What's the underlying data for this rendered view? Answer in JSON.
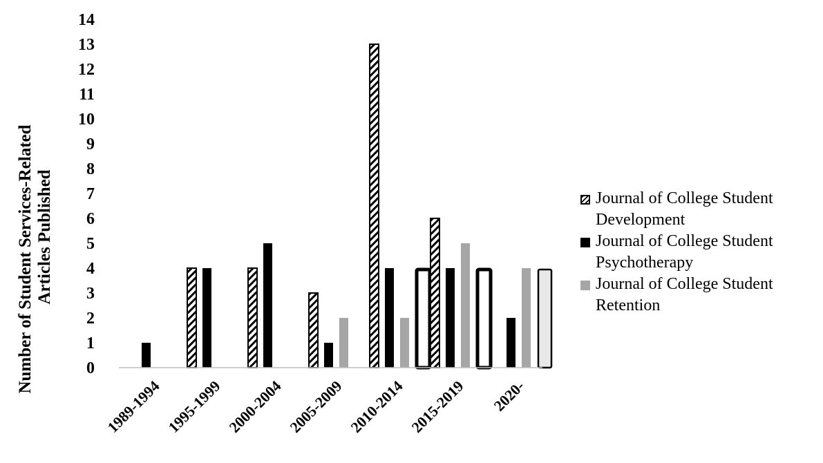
{
  "chart_data": {
    "type": "bar",
    "title": "",
    "xlabel": "",
    "ylabel": "Number of Student Services-Related Articles Published",
    "ylabel_lines": [
      "Number of  Student Services-Related",
      "Articles Published"
    ],
    "ylim": [
      0,
      14
    ],
    "yticks": [
      0,
      1,
      2,
      3,
      4,
      5,
      6,
      7,
      8,
      9,
      10,
      11,
      12,
      13,
      14
    ],
    "grid": false,
    "legend_position": "right",
    "categories": [
      "1989-1994",
      "1995-1999",
      "2000-2004",
      "2005-2009",
      "2010-2014",
      "2015-2019",
      "2020-"
    ],
    "series": [
      {
        "name": "Journal of College Student Development",
        "legend_lines": [
          "Journal of College Student",
          "Development"
        ],
        "style": "hatched",
        "color": "#000000",
        "values": [
          0,
          4,
          4,
          3,
          13,
          6,
          0
        ]
      },
      {
        "name": "Journal of College Student Psychotherapy",
        "legend_lines": [
          "Journal of College Student",
          "Psychotherapy"
        ],
        "style": "solid",
        "color": "#000000",
        "values": [
          1,
          4,
          5,
          1,
          4,
          4,
          2
        ]
      },
      {
        "name": "Journal of College Student Retention",
        "legend_lines": [
          "Journal of College Student",
          "Retention"
        ],
        "style": "solid",
        "color": "#a6a6a6",
        "values": [
          0,
          0,
          0,
          2,
          2,
          5,
          4
        ]
      },
      {
        "style": "outlined",
        "color": "#000000",
        "values": [
          0,
          0,
          0,
          0,
          4,
          4,
          4
        ]
      }
    ]
  }
}
